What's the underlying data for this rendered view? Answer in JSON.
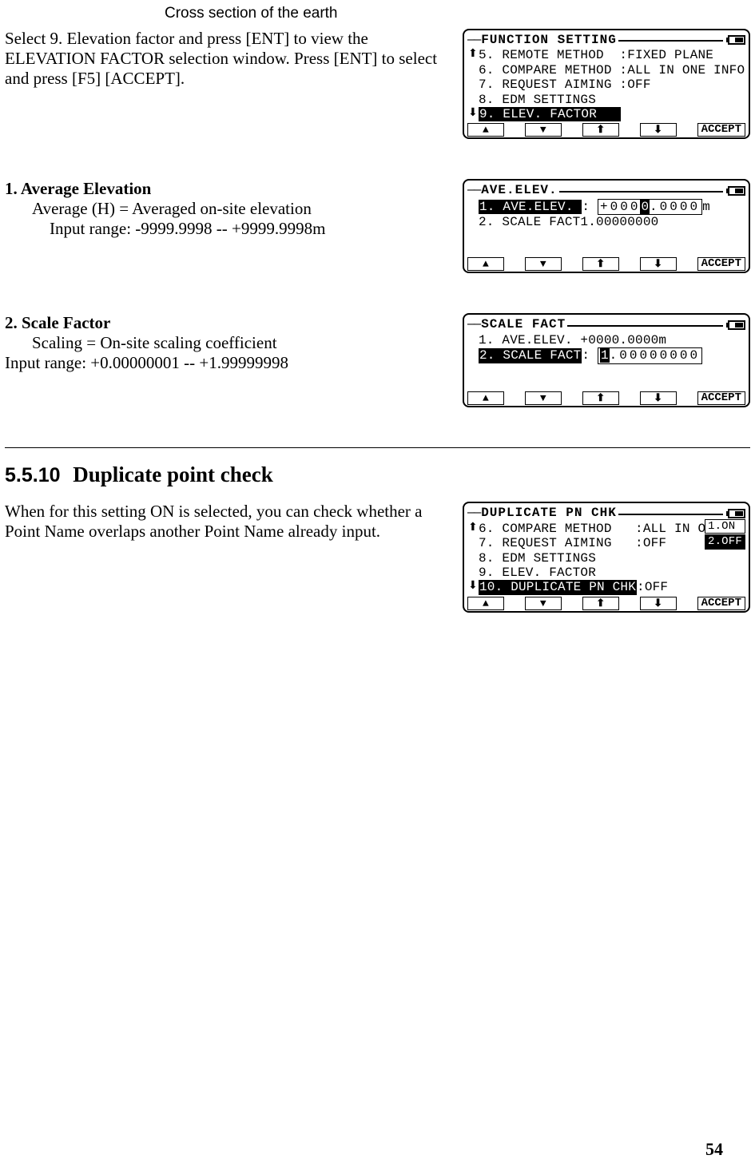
{
  "crossSectionLabel": "Cross section of the earth",
  "pageNumber": "54",
  "sectionHeading": {
    "number": "5.5.10",
    "title": "Duplicate point check"
  },
  "block1": {
    "text": "Select 9. Elevation factor and press [ENT] to view the ELEVATION FACTOR selection window. Press [ENT] to select and press [F5] [ACCEPT].",
    "lcd": {
      "title": "FUNCTION SETTING",
      "lines": [
        {
          "key": "5.",
          "label": "REMOTE METHOD",
          "value": ":FIXED PLANE",
          "selected": false,
          "arrow": "up"
        },
        {
          "key": "6.",
          "label": "COMPARE METHOD",
          "value": ":ALL IN ONE INFO",
          "selected": false
        },
        {
          "key": "7.",
          "label": "REQUEST AIMING",
          "value": ":OFF",
          "selected": false
        },
        {
          "key": "8.",
          "label": "EDM SETTINGS",
          "value": "",
          "selected": false
        },
        {
          "key": "9.",
          "label": "ELEV. FACTOR",
          "value": "",
          "selected": true,
          "arrow": "down"
        }
      ],
      "buttons": [
        "▲",
        "▼",
        "⬆",
        "⬇",
        "ACCEPT"
      ]
    }
  },
  "block2": {
    "heading": "1. Average Elevation",
    "line1": "Average (H) = Averaged on-site elevation",
    "line2": "Input range: -9999.9998 -- +9999.9998m",
    "lcd": {
      "title": "AVE.ELEV.",
      "lines": [
        {
          "key": "1.",
          "label": "AVE.ELEV.",
          "value": "+0000.0000",
          "valueSuffix": "m",
          "cursorIndex": 4,
          "selected": true,
          "boxed": true
        },
        {
          "key": "2.",
          "label": "SCALE FACT",
          "value": "1.00000000",
          "selected": false
        }
      ],
      "buttons": [
        "▲",
        "▼",
        "⬆",
        "⬇",
        "ACCEPT"
      ]
    }
  },
  "block3": {
    "heading": "2. Scale Factor",
    "line1": "Scaling = On-site scaling coefficient",
    "line2": "Input range: +0.00000001 -- +1.99999998",
    "lcd": {
      "title": "SCALE FACT",
      "lines": [
        {
          "key": "1.",
          "label": "AVE.ELEV.",
          "value": "+0000.0000",
          "valueSuffix": "m",
          "selected": false
        },
        {
          "key": "2.",
          "label": "SCALE FACT",
          "value": "1.00000000",
          "cursorIndex": 0,
          "selected": true,
          "boxed": true
        }
      ],
      "buttons": [
        "▲",
        "▼",
        "⬆",
        "⬇",
        "ACCEPT"
      ]
    }
  },
  "block4": {
    "text": "When for this setting ON is selected, you can check whether a Point Name overlaps another Point Name already input.",
    "lcd": {
      "title": "DUPLICATE PN CHK",
      "options": [
        "1.ON",
        "2.OFF"
      ],
      "selectedOption": 1,
      "lines": [
        {
          "key": "6.",
          "label": "COMPARE METHOD",
          "value": ":ALL IN O",
          "selected": false,
          "arrow": "up"
        },
        {
          "key": "7.",
          "label": "REQUEST AIMING",
          "value": ":OFF",
          "selected": false
        },
        {
          "key": "8.",
          "label": "EDM SETTINGS",
          "value": "",
          "selected": false
        },
        {
          "key": "9.",
          "label": "ELEV. FACTOR",
          "value": "",
          "selected": false
        },
        {
          "key": "10.",
          "label": "DUPLICATE PN CHK",
          "value": ":OFF",
          "selected": true,
          "arrow": "down"
        }
      ],
      "buttons": [
        "▲",
        "▼",
        "⬆",
        "⬇",
        "ACCEPT"
      ]
    }
  }
}
